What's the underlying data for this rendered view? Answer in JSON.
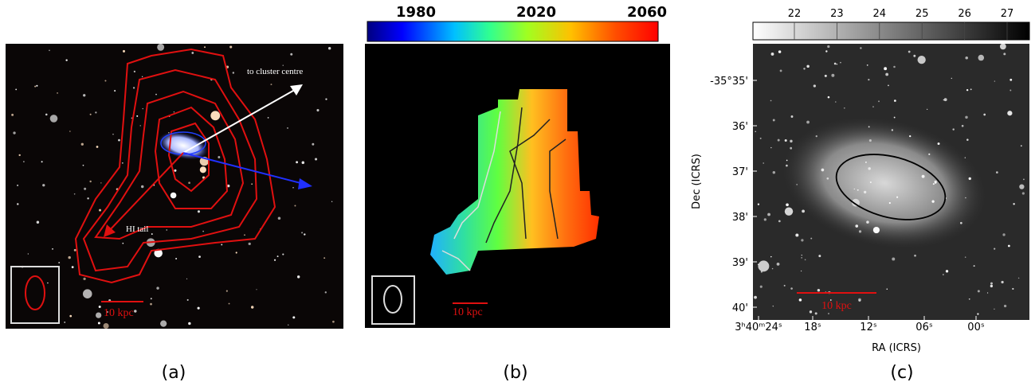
{
  "panels": [
    {
      "label": "(a)",
      "arrow_label": "to cluster centre",
      "tail_label": "HI tail",
      "scalebar": "10 kpc"
    },
    {
      "label": "(b)",
      "colorbar_ticks": [
        "1980",
        "2020",
        "2060"
      ],
      "scalebar": "10 kpc"
    },
    {
      "label": "(c)",
      "colorbar_ticks": [
        "22",
        "23",
        "24",
        "25",
        "26",
        "27"
      ],
      "y_ticks": [
        "-35°35'",
        "36'",
        "37'",
        "38'",
        "39'",
        "40'"
      ],
      "x_ticks": [
        "3ʰ40ᵐ24ˢ",
        "18ˢ",
        "12ˢ",
        "06ˢ",
        "00ˢ"
      ],
      "x_label": "RA (ICRS)",
      "y_label": "Dec (ICRS)",
      "scalebar": "10 kpc"
    }
  ]
}
